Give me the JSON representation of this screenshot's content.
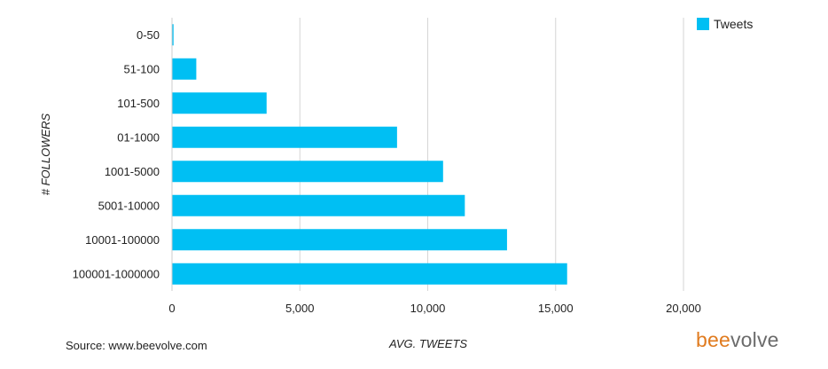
{
  "chart_data": {
    "type": "bar",
    "orientation": "horizontal",
    "categories": [
      "0-50",
      "51-100",
      "101-500",
      "01-1000",
      "1001-5000",
      "5001-10000",
      "10001-100000",
      "100001-1000000"
    ],
    "series": [
      {
        "name": "Tweets",
        "values": [
          60,
          950,
          3700,
          8800,
          10600,
          11450,
          13100,
          15450
        ],
        "color": "#00bff3"
      }
    ],
    "xlabel": "AVG. TWEETS",
    "ylabel": "# FOLLOWERS",
    "xlim": [
      0,
      20000
    ],
    "xticks": [
      0,
      5000,
      10000,
      15000,
      20000
    ],
    "xtick_labels": [
      "0",
      "5,000",
      "10,000",
      "15,000",
      "20,000"
    ],
    "grid": "vertical",
    "legend_position": "top-right"
  },
  "source_text": "Source: www.beevolve.com",
  "logo": {
    "part1": "bee",
    "part2": "volve",
    "color1": "#e07b1f",
    "color2": "#6b6b6b"
  }
}
